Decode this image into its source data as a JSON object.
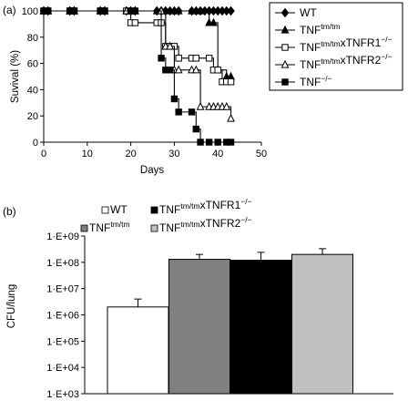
{
  "panels": {
    "a": "(a)",
    "b": "(b)"
  },
  "chart_data": [
    {
      "type": "line",
      "subtype": "step-survival",
      "xlabel": "Days",
      "ylabel": "Suvival (%)",
      "xlim": [
        0,
        50
      ],
      "ylim": [
        0,
        100
      ],
      "xticks": [
        "0",
        "10",
        "20",
        "30",
        "40",
        "50"
      ],
      "yticks": [
        "0",
        "20",
        "40",
        "60",
        "80",
        "100"
      ],
      "legend_position": "right",
      "series": [
        {
          "name": "WT",
          "marker": "diamond-filled",
          "points": [
            [
              0,
              100
            ],
            [
              1,
              100
            ],
            [
              6,
              100
            ],
            [
              7,
              100
            ],
            [
              13,
              100
            ],
            [
              14,
              100
            ],
            [
              19,
              100
            ],
            [
              20,
              100
            ],
            [
              21,
              100
            ],
            [
              26,
              100
            ],
            [
              27,
              100
            ],
            [
              28,
              100
            ],
            [
              29,
              100
            ],
            [
              30,
              100
            ],
            [
              31,
              100
            ],
            [
              34,
              100
            ],
            [
              35,
              100
            ],
            [
              36,
              100
            ],
            [
              37,
              100
            ],
            [
              38,
              100
            ],
            [
              39,
              100
            ],
            [
              40,
              100
            ],
            [
              41,
              100
            ],
            [
              42,
              100
            ],
            [
              43,
              100
            ]
          ]
        },
        {
          "name": "TNF^{tm/tm}",
          "marker": "triangle-filled",
          "points": [
            [
              0,
              100
            ],
            [
              1,
              100
            ],
            [
              6,
              100
            ],
            [
              7,
              100
            ],
            [
              13,
              100
            ],
            [
              14,
              100
            ],
            [
              19,
              100
            ],
            [
              20,
              100
            ],
            [
              21,
              100
            ],
            [
              26,
              100
            ],
            [
              27,
              100
            ],
            [
              28,
              100
            ],
            [
              30,
              100
            ],
            [
              31,
              100
            ],
            [
              34,
              100
            ],
            [
              35,
              100
            ],
            [
              36,
              100
            ],
            [
              38,
              91
            ],
            [
              39,
              91
            ],
            [
              40,
              55
            ],
            [
              42,
              50
            ],
            [
              43,
              50
            ]
          ]
        },
        {
          "name": "TNF^{tm/tm}xTNFR1^{-/-}",
          "marker": "square-open",
          "points": [
            [
              0,
              100
            ],
            [
              1,
              100
            ],
            [
              6,
              100
            ],
            [
              7,
              100
            ],
            [
              13,
              100
            ],
            [
              14,
              100
            ],
            [
              19,
              100
            ],
            [
              20,
              91
            ],
            [
              21,
              91
            ],
            [
              26,
              91
            ],
            [
              27,
              91
            ],
            [
              28,
              73
            ],
            [
              29,
              73
            ],
            [
              30,
              73
            ],
            [
              31,
              64
            ],
            [
              34,
              64
            ],
            [
              35,
              64
            ],
            [
              38,
              64
            ],
            [
              39,
              55
            ],
            [
              40,
              55
            ],
            [
              41,
              46
            ],
            [
              42,
              46
            ],
            [
              43,
              46
            ]
          ]
        },
        {
          "name": "TNF^{tm/tm}xTNFR2^{-/-}",
          "marker": "triangle-open",
          "points": [
            [
              0,
              100
            ],
            [
              1,
              100
            ],
            [
              6,
              100
            ],
            [
              7,
              100
            ],
            [
              13,
              100
            ],
            [
              14,
              100
            ],
            [
              19,
              100
            ],
            [
              20,
              100
            ],
            [
              21,
              100
            ],
            [
              27,
              100
            ],
            [
              28,
              73
            ],
            [
              29,
              73
            ],
            [
              30,
              55
            ],
            [
              31,
              55
            ],
            [
              34,
              55
            ],
            [
              35,
              55
            ],
            [
              36,
              27
            ],
            [
              38,
              27
            ],
            [
              39,
              27
            ],
            [
              40,
              27
            ],
            [
              41,
              27
            ],
            [
              42,
              27
            ],
            [
              43,
              18
            ]
          ]
        },
        {
          "name": "TNF^{-/-}",
          "marker": "square-filled",
          "points": [
            [
              0,
              100
            ],
            [
              1,
              100
            ],
            [
              6,
              100
            ],
            [
              7,
              100
            ],
            [
              13,
              100
            ],
            [
              14,
              100
            ],
            [
              20,
              100
            ],
            [
              21,
              100
            ],
            [
              27,
              64
            ],
            [
              28,
              55
            ],
            [
              29,
              55
            ],
            [
              30,
              33
            ],
            [
              31,
              23
            ],
            [
              34,
              23
            ],
            [
              35,
              10
            ],
            [
              36,
              0
            ],
            [
              38,
              0
            ],
            [
              40,
              0
            ],
            [
              42,
              0
            ],
            [
              43,
              0
            ]
          ]
        }
      ]
    },
    {
      "type": "bar",
      "ylabel": "CFU/lung",
      "yscale": "log",
      "yticks": [
        "1·E+03",
        "1·E+04",
        "1·E+05",
        "1·E+06",
        "1·E+07",
        "1·E+08",
        "1·E+09"
      ],
      "ylim": [
        1000,
        1000000000
      ],
      "categories": [
        "WT",
        "TNF^{tm/tm}",
        "TNF^{tm/tm}xTNFR1^{-/-}",
        "TNF^{tm/tm}xTNFR2^{-/-}"
      ],
      "values": [
        2000000,
        130000000,
        120000000,
        200000000
      ],
      "error_upper": [
        4000000,
        200000000,
        240000000,
        330000000
      ],
      "colors": [
        "#ffffff",
        "#808080",
        "#000000",
        "#c0c0c0"
      ],
      "legend_position": "top"
    }
  ]
}
